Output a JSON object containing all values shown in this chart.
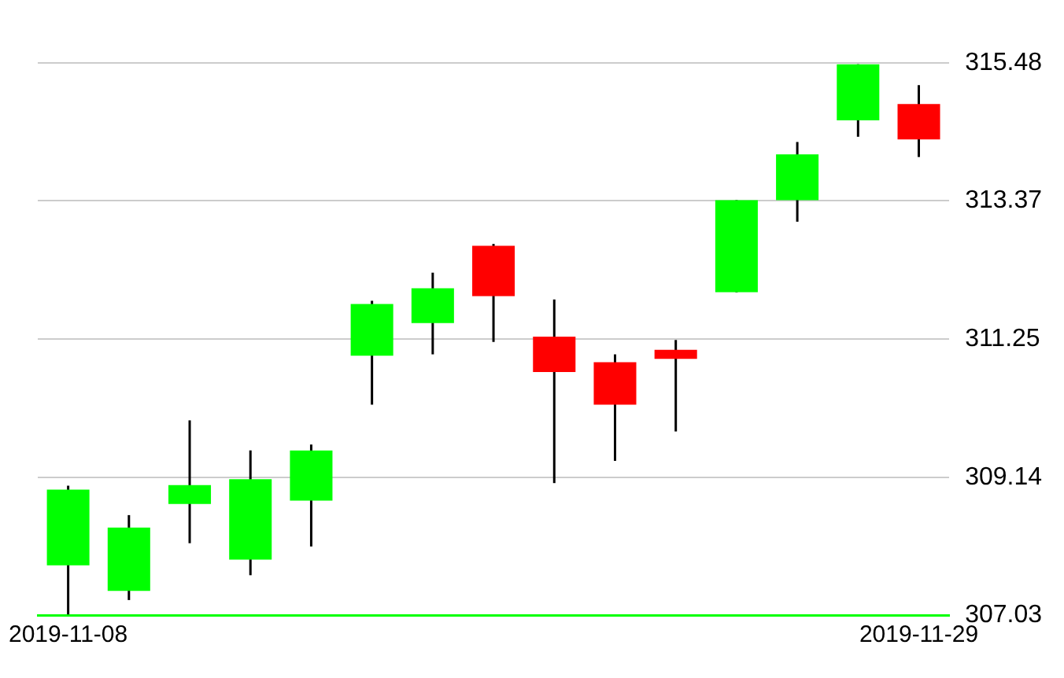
{
  "chart_data": {
    "type": "candlestick",
    "categories": [
      "2019-11-08",
      null,
      null,
      null,
      null,
      null,
      null,
      null,
      null,
      null,
      null,
      null,
      null,
      null,
      "2019-11-29"
    ],
    "ohlc": [
      [
        307.79,
        309.01,
        307.04,
        308.95
      ],
      [
        307.4,
        308.56,
        307.26,
        308.37
      ],
      [
        308.73,
        310.01,
        308.13,
        309.02
      ],
      [
        307.88,
        309.55,
        307.64,
        309.11
      ],
      [
        308.78,
        309.64,
        308.08,
        309.55
      ],
      [
        311.0,
        311.84,
        310.25,
        311.79
      ],
      [
        311.5,
        312.27,
        311.02,
        312.03
      ],
      [
        312.68,
        312.71,
        311.21,
        311.91
      ],
      [
        311.29,
        311.86,
        309.05,
        310.75
      ],
      [
        310.9,
        311.02,
        309.39,
        310.25
      ],
      [
        311.09,
        311.24,
        309.84,
        310.95
      ],
      [
        311.97,
        313.38,
        311.97,
        313.38
      ],
      [
        313.38,
        314.27,
        313.05,
        314.08
      ],
      [
        314.6,
        315.46,
        314.35,
        315.46
      ],
      [
        314.85,
        315.14,
        314.04,
        314.31
      ]
    ],
    "colors": [
      "#00ff00",
      "#00ff00",
      "#00ff00",
      "#00ff00",
      "#00ff00",
      "#00ff00",
      "#00ff00",
      "#ff0000",
      "#ff0000",
      "#ff0000",
      "#ff0000",
      "#00ff00",
      "#00ff00",
      "#00ff00",
      "#ff0000"
    ],
    "ylim": [
      307.03,
      315.48
    ],
    "yticks": [
      307.03,
      309.14,
      311.25,
      313.37,
      315.48
    ],
    "grid": "y",
    "legend": false
  }
}
